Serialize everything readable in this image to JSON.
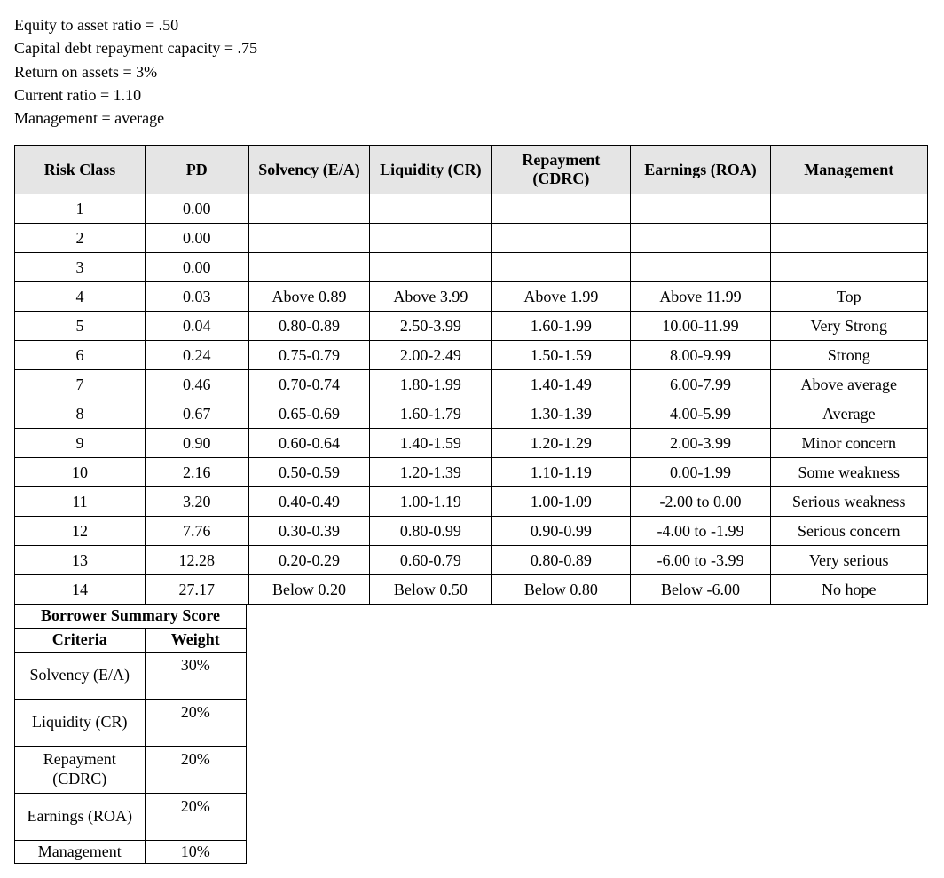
{
  "intro": [
    "Equity to asset ratio = .50",
    "Capital debt repayment capacity = .75",
    "Return on assets = 3%",
    "Current ratio = 1.10",
    "Management = average"
  ],
  "main_table": {
    "headers": {
      "risk_class": "Risk Class",
      "pd": "PD",
      "solvency": "Solvency (E/A)",
      "liquidity": "Liquidity (CR)",
      "repayment": "Repayment (CDRC)",
      "earnings": "Earnings (ROA)",
      "management": "Management"
    },
    "rows": [
      {
        "rc": "1",
        "pd": "0.00",
        "s": "",
        "l": "",
        "r": "",
        "e": "",
        "m": ""
      },
      {
        "rc": "2",
        "pd": "0.00",
        "s": "",
        "l": "",
        "r": "",
        "e": "",
        "m": ""
      },
      {
        "rc": "3",
        "pd": "0.00",
        "s": "",
        "l": "",
        "r": "",
        "e": "",
        "m": ""
      },
      {
        "rc": "4",
        "pd": "0.03",
        "s": "Above 0.89",
        "l": "Above 3.99",
        "r": "Above 1.99",
        "e": "Above 11.99",
        "m": "Top"
      },
      {
        "rc": "5",
        "pd": "0.04",
        "s": "0.80-0.89",
        "l": "2.50-3.99",
        "r": "1.60-1.99",
        "e": "10.00-11.99",
        "m": "Very Strong"
      },
      {
        "rc": "6",
        "pd": "0.24",
        "s": "0.75-0.79",
        "l": "2.00-2.49",
        "r": "1.50-1.59",
        "e": "8.00-9.99",
        "m": "Strong"
      },
      {
        "rc": "7",
        "pd": "0.46",
        "s": "0.70-0.74",
        "l": "1.80-1.99",
        "r": "1.40-1.49",
        "e": "6.00-7.99",
        "m": "Above average"
      },
      {
        "rc": "8",
        "pd": "0.67",
        "s": "0.65-0.69",
        "l": "1.60-1.79",
        "r": "1.30-1.39",
        "e": "4.00-5.99",
        "m": "Average"
      },
      {
        "rc": "9",
        "pd": "0.90",
        "s": "0.60-0.64",
        "l": "1.40-1.59",
        "r": "1.20-1.29",
        "e": "2.00-3.99",
        "m": "Minor concern"
      },
      {
        "rc": "10",
        "pd": "2.16",
        "s": "0.50-0.59",
        "l": "1.20-1.39",
        "r": "1.10-1.19",
        "e": "0.00-1.99",
        "m": "Some weakness"
      },
      {
        "rc": "11",
        "pd": "3.20",
        "s": "0.40-0.49",
        "l": "1.00-1.19",
        "r": "1.00-1.09",
        "e": "-2.00 to 0.00",
        "m": "Serious weakness"
      },
      {
        "rc": "12",
        "pd": "7.76",
        "s": "0.30-0.39",
        "l": "0.80-0.99",
        "r": "0.90-0.99",
        "e": "-4.00 to -1.99",
        "m": "Serious concern"
      },
      {
        "rc": "13",
        "pd": "12.28",
        "s": "0.20-0.29",
        "l": "0.60-0.79",
        "r": "0.80-0.89",
        "e": "-6.00 to -3.99",
        "m": "Very serious"
      },
      {
        "rc": "14",
        "pd": "27.17",
        "s": "Below 0.20",
        "l": "Below 0.50",
        "r": "Below 0.80",
        "e": "Below -6.00",
        "m": "No hope"
      }
    ]
  },
  "summary": {
    "title": "Borrower Summary Score",
    "headers": {
      "criteria": "Criteria",
      "weight": "Weight"
    },
    "rows": [
      {
        "criteria": "Solvency (E/A)",
        "weight": "30%"
      },
      {
        "criteria": "Liquidity (CR)",
        "weight": "20%"
      },
      {
        "criteria": "Repayment (CDRC)",
        "weight": "20%"
      },
      {
        "criteria": "Earnings (ROA)",
        "weight": "20%"
      },
      {
        "criteria": "Management",
        "weight": "10%"
      }
    ]
  }
}
